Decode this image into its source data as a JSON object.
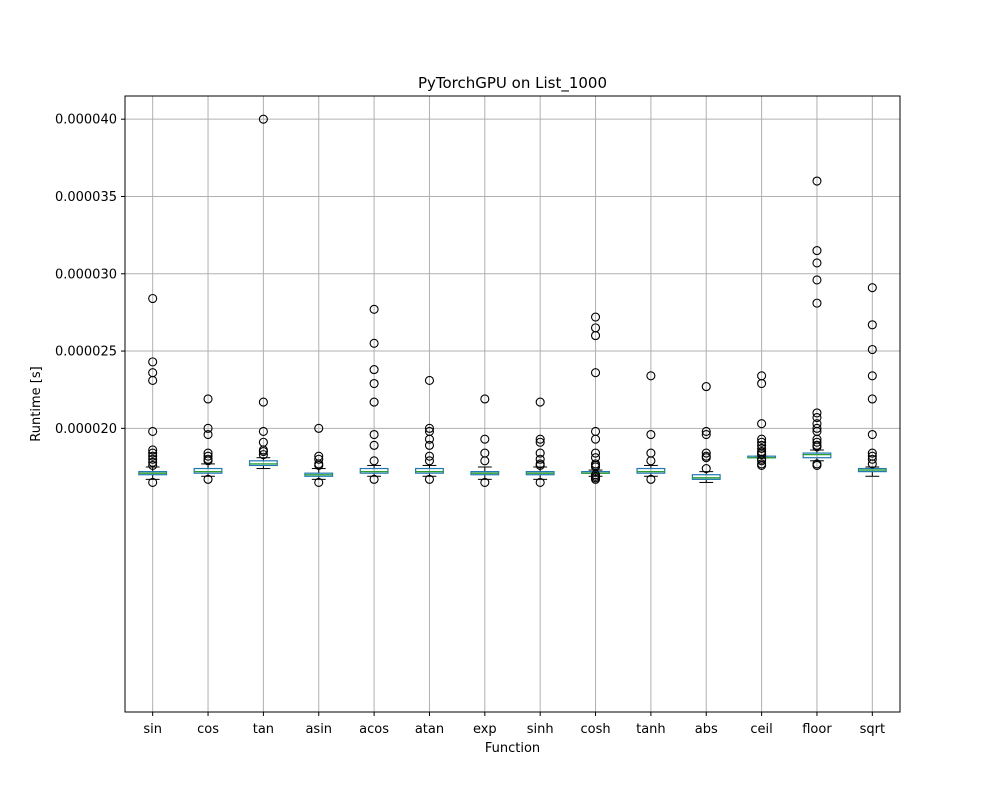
{
  "chart_data": {
    "type": "box",
    "title": "PyTorchGPU on List_1000",
    "xlabel": "Function",
    "ylabel": "Runtime [s]",
    "ylim": [
      1.65e-06,
      4.15e-05
    ],
    "yticks": [
      2e-05,
      2.5e-05,
      3e-05,
      3.5e-05,
      4e-05
    ],
    "ytick_labels": [
      "0.000020",
      "0.000025",
      "0.000030",
      "0.000035",
      "0.000040"
    ],
    "grid": true,
    "colors": {
      "box": "#1f77b4",
      "median": "#2ca02c",
      "whisker": "#000000",
      "grid": "#b0b0b0",
      "flier": "#000000"
    },
    "categories": [
      "sin",
      "cos",
      "tan",
      "asin",
      "acos",
      "atan",
      "exp",
      "sinh",
      "cosh",
      "tanh",
      "abs",
      "ceil",
      "floor",
      "sqrt"
    ],
    "boxes": [
      {
        "name": "sin",
        "whislo": 1.67e-05,
        "q1": 1.7e-05,
        "med": 1.71e-05,
        "q3": 1.72e-05,
        "whishi": 1.75e-05,
        "fliers": [
          1.65e-05,
          1.76e-05,
          1.78e-05,
          1.8e-05,
          1.82e-05,
          1.84e-05,
          1.86e-05,
          1.98e-05,
          2.31e-05,
          2.36e-05,
          2.43e-05,
          2.84e-05
        ]
      },
      {
        "name": "cos",
        "whislo": 1.69e-05,
        "q1": 1.71e-05,
        "med": 1.72e-05,
        "q3": 1.74e-05,
        "whishi": 1.77e-05,
        "fliers": [
          1.67e-05,
          1.79e-05,
          1.8e-05,
          1.82e-05,
          1.84e-05,
          1.96e-05,
          2e-05,
          2.19e-05
        ]
      },
      {
        "name": "tan",
        "whislo": 1.74e-05,
        "q1": 1.76e-05,
        "med": 1.77e-05,
        "q3": 1.79e-05,
        "whishi": 1.81e-05,
        "fliers": [
          1.83e-05,
          1.85e-05,
          1.86e-05,
          1.91e-05,
          1.98e-05,
          2.17e-05,
          4e-05
        ]
      },
      {
        "name": "asin",
        "whislo": 1.67e-05,
        "q1": 1.69e-05,
        "med": 1.7e-05,
        "q3": 1.71e-05,
        "whishi": 1.74e-05,
        "fliers": [
          1.65e-05,
          1.76e-05,
          1.77e-05,
          1.8e-05,
          1.82e-05,
          2e-05
        ]
      },
      {
        "name": "acos",
        "whislo": 1.69e-05,
        "q1": 1.71e-05,
        "med": 1.72e-05,
        "q3": 1.74e-05,
        "whishi": 1.76e-05,
        "fliers": [
          1.67e-05,
          1.79e-05,
          1.89e-05,
          1.96e-05,
          2.17e-05,
          2.29e-05,
          2.38e-05,
          2.55e-05,
          2.77e-05
        ]
      },
      {
        "name": "atan",
        "whislo": 1.69e-05,
        "q1": 1.71e-05,
        "med": 1.72e-05,
        "q3": 1.74e-05,
        "whishi": 1.76e-05,
        "fliers": [
          1.67e-05,
          1.79e-05,
          1.82e-05,
          1.89e-05,
          1.93e-05,
          1.98e-05,
          2e-05,
          2.31e-05
        ]
      },
      {
        "name": "exp",
        "whislo": 1.67e-05,
        "q1": 1.7e-05,
        "med": 1.71e-05,
        "q3": 1.72e-05,
        "whishi": 1.75e-05,
        "fliers": [
          1.65e-05,
          1.79e-05,
          1.84e-05,
          1.93e-05,
          2.19e-05
        ]
      },
      {
        "name": "sinh",
        "whislo": 1.67e-05,
        "q1": 1.7e-05,
        "med": 1.71e-05,
        "q3": 1.72e-05,
        "whishi": 1.75e-05,
        "fliers": [
          1.65e-05,
          1.76e-05,
          1.77e-05,
          1.8e-05,
          1.84e-05,
          1.91e-05,
          1.93e-05,
          2.17e-05
        ]
      },
      {
        "name": "cosh",
        "whislo": 1.69e-05,
        "q1": 1.71e-05,
        "med": 1.71e-05,
        "q3": 1.72e-05,
        "whishi": 1.73e-05,
        "fliers": [
          1.67e-05,
          1.68e-05,
          1.69e-05,
          1.7e-05,
          1.75e-05,
          1.76e-05,
          1.77e-05,
          1.81e-05,
          1.84e-05,
          1.93e-05,
          1.98e-05,
          2.36e-05,
          2.6e-05,
          2.65e-05,
          2.72e-05
        ]
      },
      {
        "name": "tanh",
        "whislo": 1.69e-05,
        "q1": 1.71e-05,
        "med": 1.72e-05,
        "q3": 1.74e-05,
        "whishi": 1.76e-05,
        "fliers": [
          1.67e-05,
          1.79e-05,
          1.84e-05,
          1.96e-05,
          2.34e-05
        ]
      },
      {
        "name": "abs",
        "whislo": 1.65e-05,
        "q1": 1.67e-05,
        "med": 1.68e-05,
        "q3": 1.7e-05,
        "whishi": 1.72e-05,
        "fliers": [
          1.74e-05,
          1.81e-05,
          1.82e-05,
          1.84e-05,
          1.96e-05,
          1.98e-05,
          2.27e-05
        ]
      },
      {
        "name": "ceil",
        "whislo": 1.81e-05,
        "q1": 1.81e-05,
        "med": 1.81e-05,
        "q3": 1.82e-05,
        "whishi": 1.82e-05,
        "fliers": [
          1.76e-05,
          1.77e-05,
          1.79e-05,
          1.8e-05,
          1.83e-05,
          1.84e-05,
          1.85e-05,
          1.87e-05,
          1.89e-05,
          1.91e-05,
          1.93e-05,
          2.03e-05,
          2.29e-05,
          2.34e-05
        ]
      },
      {
        "name": "floor",
        "whislo": 1.79e-05,
        "q1": 1.81e-05,
        "med": 1.83e-05,
        "q3": 1.84e-05,
        "whishi": 1.86e-05,
        "fliers": [
          1.76e-05,
          1.77e-05,
          1.88e-05,
          1.89e-05,
          1.91e-05,
          1.93e-05,
          1.98e-05,
          2e-05,
          2.03e-05,
          2.07e-05,
          2.1e-05,
          2.81e-05,
          2.96e-05,
          3.07e-05,
          3.15e-05,
          3.6e-05
        ]
      },
      {
        "name": "sqrt",
        "whislo": 1.69e-05,
        "q1": 1.72e-05,
        "med": 1.73e-05,
        "q3": 1.74e-05,
        "whishi": 1.75e-05,
        "fliers": [
          1.77e-05,
          1.8e-05,
          1.82e-05,
          1.84e-05,
          1.96e-05,
          2.19e-05,
          2.34e-05,
          2.51e-05,
          2.67e-05,
          2.91e-05
        ]
      }
    ]
  }
}
